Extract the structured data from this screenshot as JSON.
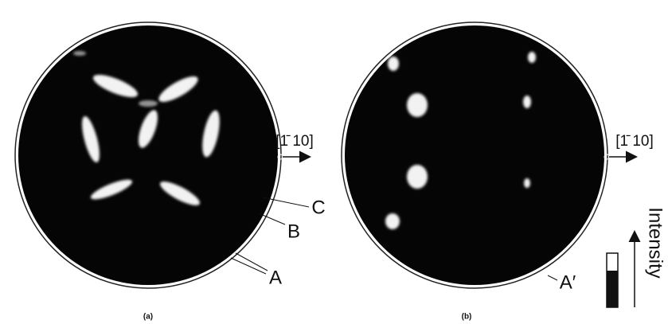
{
  "panels": [
    {
      "label": "(a)",
      "direction": "[1̄ 10]",
      "annotations": [
        "A",
        "B",
        "C"
      ]
    },
    {
      "label": "(b)",
      "direction": "[1̄ 10]",
      "annotations": [
        "A′"
      ]
    }
  ],
  "legend": {
    "title": "Intensity"
  }
}
